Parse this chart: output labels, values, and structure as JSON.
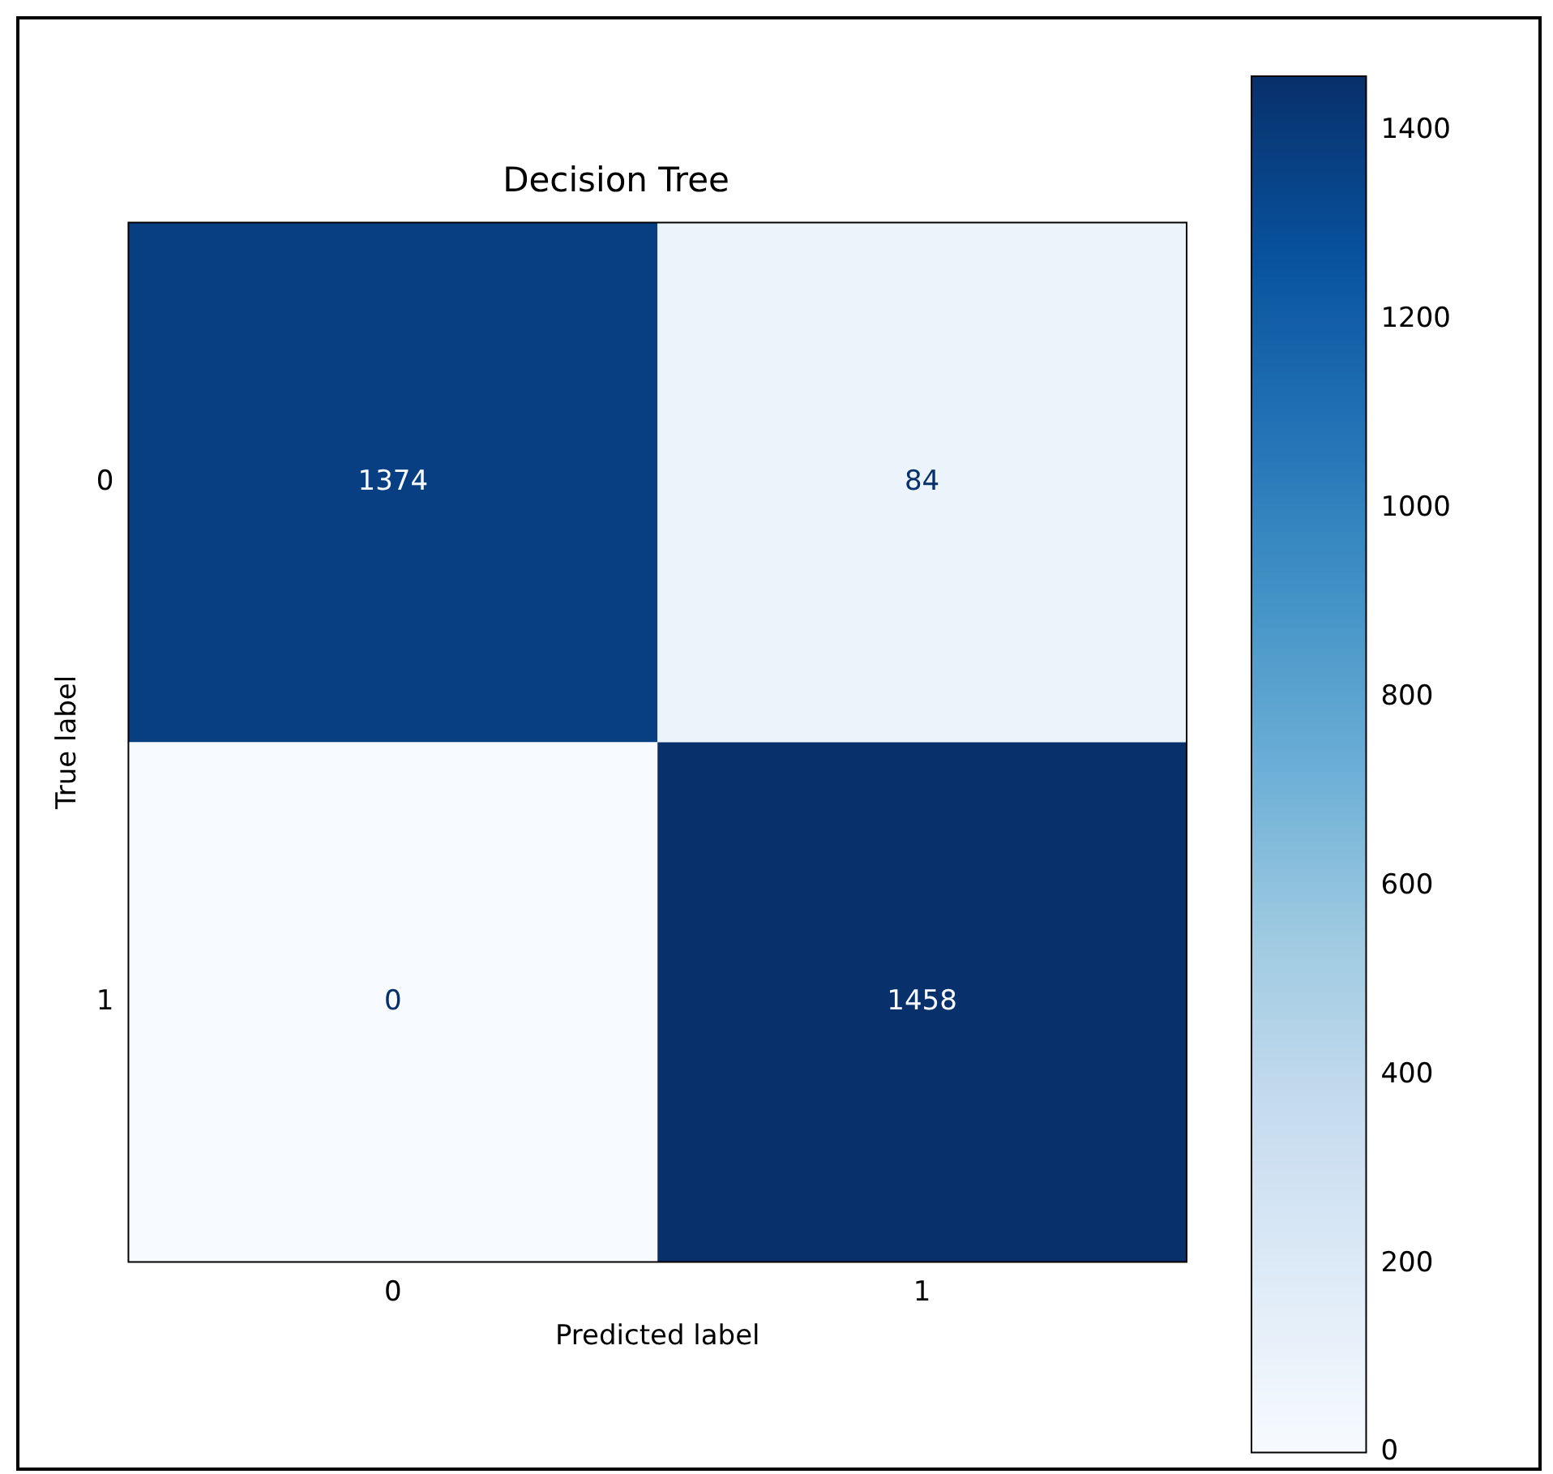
{
  "chart_data": {
    "type": "heatmap",
    "title": "Decision Tree",
    "xlabel": "Predicted label",
    "ylabel": "True label",
    "categories": [
      "0",
      "1"
    ],
    "y_categories": [
      "0",
      "1"
    ],
    "cells": [
      [
        1374,
        84
      ],
      [
        0,
        1458
      ]
    ],
    "clim": [
      0,
      1458
    ],
    "cticks": [
      0,
      200,
      400,
      600,
      800,
      1000,
      1200,
      1400
    ],
    "data_labels": true
  }
}
